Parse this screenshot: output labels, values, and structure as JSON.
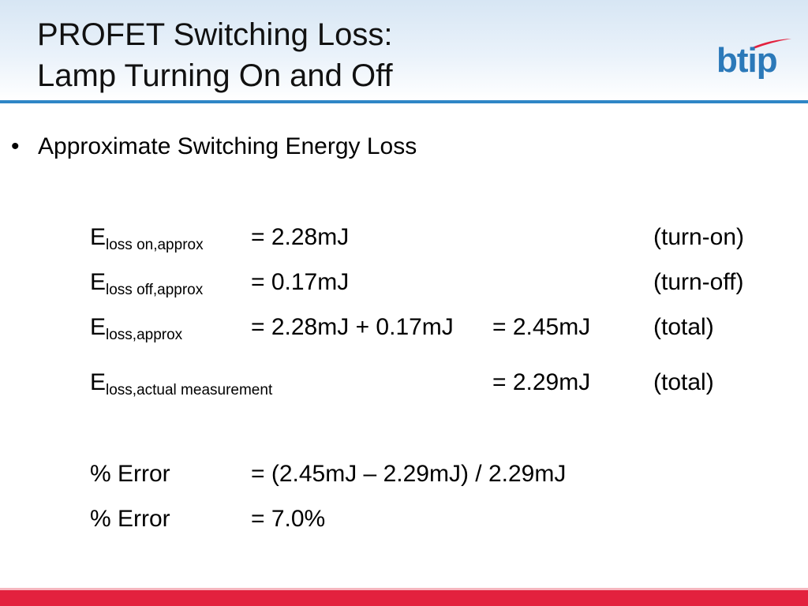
{
  "slide": {
    "title_line1": "PROFET Switching Loss:",
    "title_line2": "Lamp Turning On and Off",
    "logo_text": "btip",
    "bullet_symbol": "•",
    "bullet_text": "Approximate Switching Energy Loss"
  },
  "equations": [
    {
      "symbol": "E",
      "subscript": "loss on,approx",
      "expr": "= 2.28mJ",
      "result": "",
      "note": "(turn-on)"
    },
    {
      "symbol": "E",
      "subscript": "loss off,approx",
      "expr": "= 0.17mJ",
      "result": "",
      "note": "(turn-off)"
    },
    {
      "symbol": "E",
      "subscript": "loss,approx",
      "expr": "= 2.28mJ + 0.17mJ",
      "result": "= 2.45mJ",
      "note": "(total)"
    },
    {
      "symbol": "E",
      "subscript": "loss,actual measurement",
      "expr": "",
      "result": "= 2.29mJ",
      "note": "(total)"
    }
  ],
  "errors": [
    {
      "label": "% Error",
      "expr": "= (2.45mJ – 2.29mJ) / 2.29mJ"
    },
    {
      "label": "% Error",
      "expr": "= 7.0%"
    }
  ],
  "colors": {
    "header_line": "#2f86c6",
    "logo": "#2b79b9",
    "logo_swoosh": "#e3213e",
    "bottom_bar": "#e3213e"
  }
}
